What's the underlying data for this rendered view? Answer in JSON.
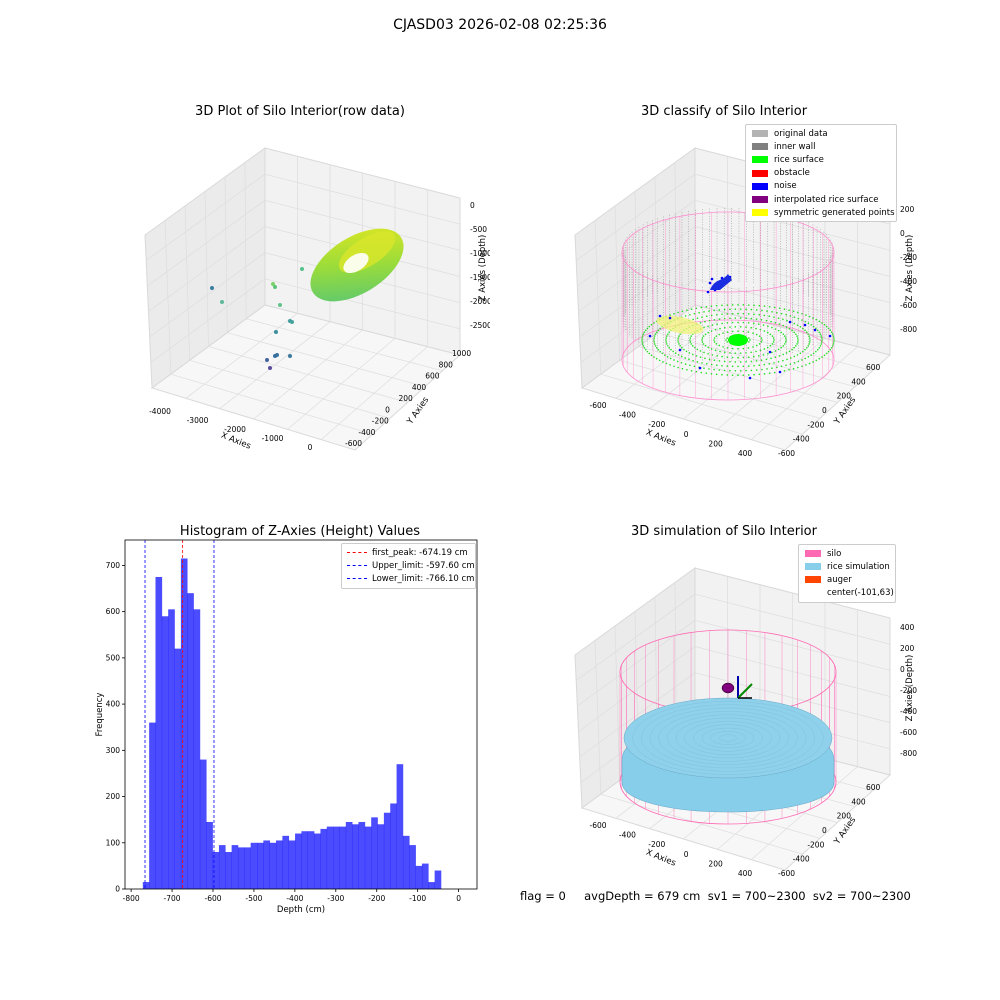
{
  "figure": {
    "suptitle": "CJASD03 2026-02-08 02:25:36",
    "footer": "flag = 0     avgDepth = 679 cm  sv1 = 700~2300  sv2 = 700~2300"
  },
  "panels": {
    "raw": {
      "title": "3D Plot of Silo Interior(row data)",
      "xlabel": "X Axies",
      "ylabel": "Y Axies",
      "zlabel": "Z Axies (Depth)",
      "xticks": [
        "-4000",
        "-3000",
        "-2000",
        "-1000",
        "0"
      ],
      "yticks": [
        "1000",
        "800",
        "600",
        "400",
        "200",
        "0",
        "-200",
        "-400",
        "-600"
      ],
      "zticks": [
        "0",
        "-500",
        "-1000",
        "-1500",
        "-2000",
        "-2500"
      ]
    },
    "classify": {
      "title": "3D classify of Silo Interior",
      "xlabel": "X Axies",
      "ylabel": "Y Axies",
      "zlabel": "Z Axies (Depth)",
      "xticks": [
        "-600",
        "-400",
        "-200",
        "0",
        "200",
        "400"
      ],
      "yticks": [
        "600",
        "400",
        "200",
        "0",
        "-200",
        "-400",
        "-600"
      ],
      "zticks": [
        "200",
        "0",
        "-200",
        "-400",
        "-600",
        "-800"
      ],
      "legend": [
        {
          "label": "original data",
          "color": "#b3b3b3"
        },
        {
          "label": "inner wall",
          "color": "#808080"
        },
        {
          "label": "rice surface",
          "color": "#00ff00"
        },
        {
          "label": "obstacle",
          "color": "#ff0000"
        },
        {
          "label": "noise",
          "color": "#0000ff"
        },
        {
          "label": "interpolated rice surface",
          "color": "#800080"
        },
        {
          "label": "symmetric generated points",
          "color": "#ffff00"
        }
      ]
    },
    "simulation": {
      "title": "3D simulation of Silo Interior",
      "xlabel": "X Axies",
      "ylabel": "Y Axies",
      "zlabel": "Z Axies (Depth)",
      "xticks": [
        "-600",
        "-400",
        "-200",
        "0",
        "200",
        "400"
      ],
      "yticks": [
        "600",
        "400",
        "200",
        "0",
        "-200",
        "-400",
        "-600"
      ],
      "zticks": [
        "400",
        "200",
        "0",
        "-200",
        "-400",
        "-600",
        "-800"
      ],
      "legend": [
        {
          "label": "silo",
          "color": "#ff69b4"
        },
        {
          "label": "rice simulation",
          "color": "#87ceeb"
        },
        {
          "label": "auger",
          "color": "#ff4500"
        },
        {
          "label": "center(-101,63)",
          "color": ""
        }
      ]
    }
  },
  "chart_data": {
    "type": "bar",
    "title": "Histogram of Z-Axies (Height) Values",
    "xlabel": "Depth (cm)",
    "ylabel": "Frequency",
    "xlim": [
      -800,
      0
    ],
    "ylim": [
      0,
      700
    ],
    "xticks": [
      -800,
      -700,
      -600,
      -500,
      -400,
      -300,
      -200,
      -100,
      0
    ],
    "yticks": [
      0,
      100,
      200,
      300,
      400,
      500,
      600,
      700
    ],
    "bar_color": "#0000ff",
    "bins": {
      "start": -771.5,
      "width": 15.5
    },
    "values": [
      15,
      360,
      675,
      590,
      605,
      520,
      715,
      640,
      605,
      280,
      145,
      80,
      95,
      80,
      95,
      90,
      90,
      100,
      100,
      105,
      100,
      105,
      115,
      105,
      120,
      125,
      125,
      120,
      130,
      135,
      135,
      135,
      145,
      140,
      145,
      135,
      155,
      140,
      165,
      185,
      270,
      115,
      95,
      50,
      55,
      15,
      40
    ],
    "reference_lines": [
      {
        "label": "first_peak: -674.19 cm",
        "x": -674.19,
        "color": "#ff0000"
      },
      {
        "label": "Upper_limit: -597.60 cm",
        "x": -597.6,
        "color": "#0000ff"
      },
      {
        "label": "Lower_limit: -766.10 cm",
        "x": -766.1,
        "color": "#0000ff"
      }
    ]
  }
}
